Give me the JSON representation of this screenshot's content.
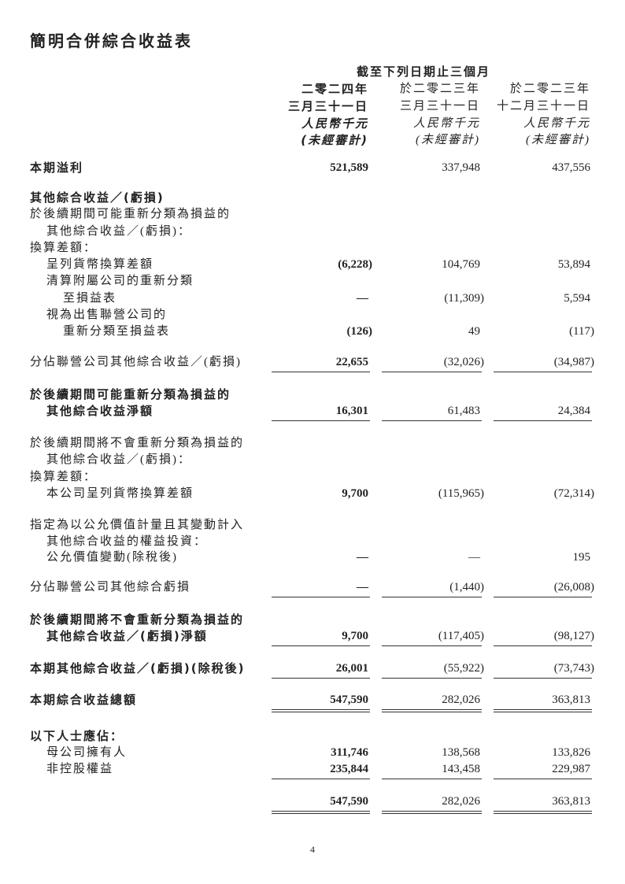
{
  "title": "簡明合併綜合收益表",
  "header": {
    "period": "截至下列日期止三個月",
    "columns": [
      {
        "line1": "二零二四年",
        "line2": "三月三十一日",
        "currency": "人民幣千元",
        "audit": "(未經審計)"
      },
      {
        "line1": "於二零二三年",
        "line2": "三月三十一日",
        "currency": "人民幣千元",
        "audit": "(未經審計)"
      },
      {
        "line1": "於二零二三年",
        "line2": "十二月三十一日",
        "currency": "人民幣千元",
        "audit": "(未經審計)"
      }
    ]
  },
  "rows": [
    {
      "label": "本期溢利",
      "level": 0,
      "bold": true,
      "values": [
        "521,589",
        "337,948",
        "437,556"
      ]
    },
    {
      "label": "其他綜合收益／(虧損)",
      "level": 0,
      "bold": true,
      "values": null
    },
    {
      "label": "於後續期間可能重新分類為損益的",
      "level": 0,
      "bold": false,
      "values": null
    },
    {
      "label": "其他綜合收益／(虧損)：",
      "level": 1,
      "bold": false,
      "values": null
    },
    {
      "label": "換算差額：",
      "level": 0,
      "bold": false,
      "values": null
    },
    {
      "label": "呈列貨幣換算差額",
      "level": 1,
      "bold": false,
      "values": [
        "(6,228)",
        "104,769",
        "53,894"
      ]
    },
    {
      "label": "清算附屬公司的重新分類",
      "level": 1,
      "bold": false,
      "values": null
    },
    {
      "label": "至損益表",
      "level": 2,
      "bold": false,
      "values": [
        "—",
        "(11,309)",
        "5,594"
      ]
    },
    {
      "label": "視為出售聯營公司的",
      "level": 1,
      "bold": false,
      "values": null
    },
    {
      "label": "重新分類至損益表",
      "level": 2,
      "bold": false,
      "values": [
        "(126)",
        "49",
        "(117)"
      ]
    },
    {
      "label": "分佔聯營公司其他綜合收益／(虧損)",
      "level": 0,
      "bold": false,
      "values": [
        "22,655",
        "(32,026)",
        "(34,987)"
      ]
    },
    {
      "label": "於後續期間可能重新分類為損益的",
      "level": 0,
      "bold": true,
      "values": null
    },
    {
      "label": "其他綜合收益淨額",
      "level": 1,
      "bold": true,
      "values": [
        "16,301",
        "61,483",
        "24,384"
      ]
    },
    {
      "label": "於後續期間將不會重新分類為損益的",
      "level": 0,
      "bold": false,
      "values": null
    },
    {
      "label": "其他綜合收益／(虧損)：",
      "level": 1,
      "bold": false,
      "values": null
    },
    {
      "label": "換算差額：",
      "level": 0,
      "bold": false,
      "values": null
    },
    {
      "label": "本公司呈列貨幣換算差額",
      "level": 1,
      "bold": false,
      "values": [
        "9,700",
        "(115,965)",
        "(72,314)"
      ]
    },
    {
      "label": "指定為以公允價值計量且其變動計入",
      "level": 0,
      "bold": false,
      "values": null
    },
    {
      "label": "其他綜合收益的權益投資：",
      "level": 1,
      "bold": false,
      "values": null
    },
    {
      "label": "公允價值變動(除稅後)",
      "level": 1,
      "bold": false,
      "values": [
        "—",
        "—",
        "195"
      ]
    },
    {
      "label": "分佔聯營公司其他綜合虧損",
      "level": 0,
      "bold": false,
      "values": [
        "—",
        "(1,440)",
        "(26,008)"
      ]
    },
    {
      "label": "於後續期間將不會重新分類為損益的",
      "level": 0,
      "bold": true,
      "values": null
    },
    {
      "label": "其他綜合收益／(虧損)淨額",
      "level": 1,
      "bold": true,
      "values": [
        "9,700",
        "(117,405)",
        "(98,127)"
      ]
    },
    {
      "label": "本期其他綜合收益／(虧損)(除稅後)",
      "level": 0,
      "bold": true,
      "values": [
        "26,001",
        "(55,922)",
        "(73,743)"
      ]
    },
    {
      "label": "本期綜合收益總額",
      "level": 0,
      "bold": true,
      "values": [
        "547,590",
        "282,026",
        "363,813"
      ]
    },
    {
      "label": "以下人士應佔：",
      "level": 0,
      "bold": true,
      "values": null
    },
    {
      "label": "母公司擁有人",
      "level": 1,
      "bold": false,
      "values": [
        "311,746",
        "138,568",
        "133,826"
      ]
    },
    {
      "label": "非控股權益",
      "level": 1,
      "bold": false,
      "values": [
        "235,844",
        "143,458",
        "229,987"
      ]
    },
    {
      "label": "",
      "level": 0,
      "bold": false,
      "values": [
        "547,590",
        "282,026",
        "363,813"
      ]
    }
  ],
  "page_number": "4"
}
